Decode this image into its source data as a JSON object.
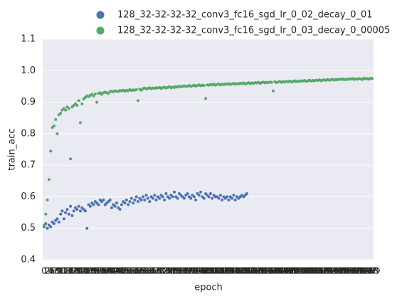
{
  "chart_data": {
    "type": "scatter",
    "xlabel": "epoch",
    "ylabel": "train_acc",
    "x": [
      0,
      1,
      2,
      3,
      4,
      5,
      6,
      7,
      8,
      9,
      10,
      11,
      12,
      13,
      14,
      15,
      16,
      17,
      18,
      19,
      20,
      21,
      22,
      23,
      24,
      25,
      26,
      27,
      28,
      29,
      30,
      31,
      32,
      33,
      34,
      35,
      36,
      37,
      38,
      39,
      40,
      41,
      42,
      43,
      44,
      45,
      46,
      47,
      48,
      49,
      50,
      51,
      52,
      53,
      54,
      55,
      56,
      57,
      58,
      59,
      60,
      61,
      62,
      63,
      64,
      65,
      66,
      67,
      68,
      69,
      70,
      71,
      72,
      73,
      74,
      75,
      76,
      77,
      78,
      79,
      80,
      81,
      82,
      83,
      84,
      85,
      86,
      87,
      88,
      89,
      90,
      91,
      92,
      93,
      94,
      95,
      96,
      97,
      98,
      99,
      100,
      101,
      102,
      103,
      104,
      105,
      106,
      107,
      108,
      109,
      110,
      111,
      112,
      113,
      114,
      115,
      116,
      117,
      118,
      119,
      120,
      121,
      122,
      123,
      124,
      125,
      126,
      127,
      128,
      129,
      130,
      131,
      132,
      133,
      134,
      135,
      136,
      137,
      138,
      139,
      140,
      141,
      142,
      143,
      144,
      145,
      146,
      147,
      148,
      149,
      150,
      151,
      152,
      153,
      154,
      155,
      156,
      157,
      158,
      159,
      160,
      161,
      162,
      163,
      164,
      165,
      166,
      167,
      168,
      169,
      170,
      171,
      172,
      173,
      174,
      175,
      176,
      177,
      178,
      179,
      180,
      181,
      182,
      183,
      184,
      185,
      186,
      187,
      188,
      189,
      190,
      191,
      192,
      193,
      194,
      195,
      196,
      197,
      198,
      199
    ],
    "xlim": [
      0,
      199
    ],
    "ylim": [
      0.4,
      1.1
    ],
    "yticks": [
      0.4,
      0.5,
      0.6,
      0.7,
      0.8,
      0.9,
      {
        "value": 1,
        "label": "1.0"
      },
      1.1
    ],
    "grid": true,
    "legend": "top",
    "series": [
      {
        "name": "128_32-32-32-32_conv3_fc16_sgd_lr_0_02_decay_0_01",
        "color": "#4c72b0",
        "values": [
          0.505,
          0.515,
          0.5,
          0.51,
          0.505,
          0.52,
          0.515,
          0.525,
          0.53,
          0.52,
          0.545,
          0.555,
          0.53,
          0.55,
          0.56,
          0.545,
          0.57,
          0.54,
          0.555,
          0.565,
          0.56,
          0.57,
          0.555,
          0.565,
          0.56,
          0.555,
          0.5,
          0.575,
          0.57,
          0.58,
          0.575,
          0.585,
          0.58,
          0.575,
          0.59,
          0.585,
          0.59,
          0.575,
          0.58,
          0.585,
          0.59,
          0.565,
          0.575,
          0.57,
          0.58,
          0.565,
          0.56,
          0.575,
          0.585,
          0.58,
          0.59,
          0.575,
          0.585,
          0.595,
          0.58,
          0.59,
          0.6,
          0.585,
          0.595,
          0.59,
          0.6,
          0.59,
          0.605,
          0.595,
          0.585,
          0.6,
          0.595,
          0.605,
          0.59,
          0.6,
          0.595,
          0.605,
          0.6,
          0.59,
          0.61,
          0.6,
          0.595,
          0.605,
          0.6,
          0.615,
          0.6,
          0.595,
          0.61,
          0.605,
          0.6,
          0.595,
          0.605,
          0.61,
          0.6,
          0.595,
          0.605,
          0.6,
          0.59,
          0.61,
          0.605,
          0.615,
          0.6,
          0.595,
          0.61,
          0.605,
          0.6,
          0.61,
          0.595,
          0.605,
          0.6,
          0.6,
          0.595,
          0.605,
          0.59,
          0.6,
          0.595,
          0.6,
          0.59,
          0.6,
          0.595,
          0.605,
          0.59,
          0.6,
          0.595,
          0.6,
          0.605,
          0.6,
          0.605,
          0.61,
          null,
          null,
          null,
          null,
          null,
          null,
          null,
          null,
          null,
          null,
          null,
          null,
          null,
          null,
          null,
          null,
          null,
          null,
          null,
          null,
          null,
          null,
          null,
          null,
          null,
          null,
          null,
          null,
          null,
          null,
          null,
          null,
          null,
          null,
          null,
          null,
          null,
          null,
          null,
          null,
          null,
          null,
          null,
          null,
          null,
          null,
          null,
          null,
          null,
          null,
          null,
          null,
          null,
          null,
          null,
          null,
          null,
          null,
          null,
          null,
          null,
          null,
          null,
          null,
          null,
          null,
          null,
          null,
          null,
          null,
          null,
          null,
          null,
          null,
          null,
          null
        ]
      },
      {
        "name": "128_32-32-32-32_conv3_fc16_sgd_lr_0_03_decay_0_00005",
        "color": "#55a868",
        "values": [
          0.51,
          0.545,
          0.59,
          0.655,
          0.745,
          0.82,
          0.825,
          0.845,
          0.8,
          0.86,
          0.865,
          0.875,
          0.88,
          0.875,
          0.885,
          0.88,
          0.72,
          0.885,
          0.89,
          0.895,
          0.89,
          0.905,
          0.835,
          0.895,
          0.91,
          0.915,
          0.92,
          0.918,
          0.922,
          0.925,
          0.92,
          0.926,
          0.9,
          0.928,
          0.93,
          0.925,
          0.93,
          0.932,
          0.93,
          0.928,
          0.934,
          0.935,
          0.933,
          0.936,
          0.935,
          0.934,
          0.937,
          0.936,
          0.938,
          0.935,
          0.938,
          0.936,
          0.94,
          0.937,
          0.939,
          0.938,
          0.94,
          0.905,
          0.941,
          0.938,
          0.943,
          0.945,
          0.942,
          0.944,
          0.946,
          0.943,
          0.945,
          0.944,
          0.946,
          0.945,
          0.947,
          0.944,
          0.946,
          0.948,
          0.945,
          0.947,
          0.949,
          0.946,
          0.948,
          0.947,
          0.95,
          0.948,
          0.951,
          0.949,
          0.95,
          0.952,
          0.95,
          0.951,
          0.953,
          0.95,
          0.952,
          0.954,
          0.951,
          0.953,
          0.955,
          0.952,
          0.954,
          0.953,
          0.912,
          0.955,
          0.954,
          0.956,
          0.955,
          0.957,
          0.954,
          0.956,
          0.958,
          0.955,
          0.957,
          0.956,
          0.958,
          0.957,
          0.959,
          0.956,
          0.958,
          0.96,
          0.957,
          0.959,
          0.958,
          0.96,
          0.959,
          0.961,
          0.958,
          0.96,
          0.962,
          0.959,
          0.961,
          0.96,
          0.962,
          0.961,
          0.963,
          0.96,
          0.962,
          0.964,
          0.961,
          0.963,
          0.962,
          0.964,
          0.963,
          0.936,
          0.965,
          0.962,
          0.964,
          0.966,
          0.963,
          0.965,
          0.964,
          0.966,
          0.965,
          0.967,
          0.964,
          0.966,
          0.968,
          0.965,
          0.967,
          0.966,
          0.968,
          0.967,
          0.969,
          0.966,
          0.968,
          0.97,
          0.967,
          0.969,
          0.968,
          0.97,
          0.969,
          0.971,
          0.968,
          0.97,
          0.971,
          0.969,
          0.972,
          0.97,
          0.971,
          0.973,
          0.97,
          0.972,
          0.971,
          0.973,
          0.972,
          0.974,
          0.971,
          0.973,
          0.972,
          0.974,
          0.973,
          0.975,
          0.972,
          0.974,
          0.973,
          0.975,
          0.974,
          0.972,
          0.976,
          0.974,
          0.975,
          0.973,
          0.976,
          0.975
        ]
      }
    ]
  }
}
